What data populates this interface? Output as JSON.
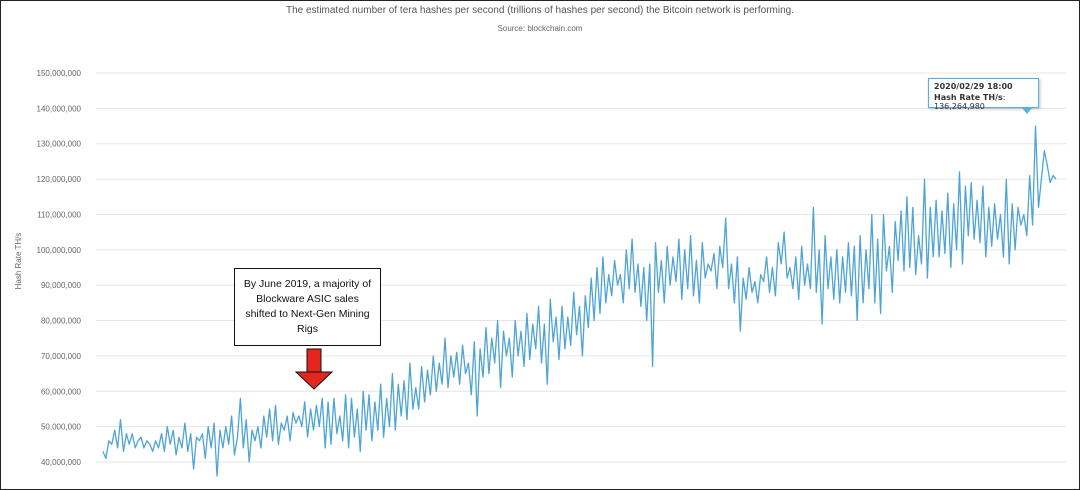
{
  "header": {
    "subtitle": "The estimated number of tera hashes per second (trillions of hashes per second) the Bitcoin network is performing.",
    "source": "Source: blockchain.com"
  },
  "tooltip": {
    "date": "2020/02/29 18:00",
    "label": "Hash Rate TH/s",
    "value": "136,264,980"
  },
  "annotation": {
    "text": "By June 2019, a majority of Blockware ASIC sales shifted to Next-Gen Mining Rigs"
  },
  "colors": {
    "line": "#4ea4d4",
    "arrow": "#e5261f",
    "grid": "#e6e6e6"
  },
  "chart_data": {
    "type": "line",
    "title": "",
    "ylabel": "Hash Rate TH/s",
    "xlabel": "",
    "ylim": [
      35000000,
      150000000
    ],
    "yticks": [
      40000000,
      50000000,
      60000000,
      70000000,
      80000000,
      90000000,
      100000000,
      110000000,
      120000000,
      130000000,
      140000000,
      150000000
    ],
    "ytick_labels": [
      "40,000,000",
      "50,000,000",
      "60,000,000",
      "70,000,000",
      "80,000,000",
      "90,000,000",
      "100,000,000",
      "110,000,000",
      "120,000,000",
      "130,000,000",
      "140,000,000",
      "150,000,000"
    ],
    "grid": true,
    "legend": "none",
    "series": [
      {
        "values": [
          43000000,
          41000000,
          46000000,
          45000000,
          49000000,
          44000000,
          52000000,
          43000000,
          48000000,
          45000000,
          48000000,
          44000000,
          46000000,
          47000000,
          44000000,
          46000000,
          45000000,
          43000000,
          46000000,
          44000000,
          48000000,
          43000000,
          50000000,
          45000000,
          49000000,
          42000000,
          47000000,
          44000000,
          51000000,
          43000000,
          48000000,
          38000000,
          47000000,
          46000000,
          48000000,
          41000000,
          50000000,
          44000000,
          51000000,
          36000000,
          49000000,
          44000000,
          50000000,
          45000000,
          53000000,
          42000000,
          47000000,
          58000000,
          44000000,
          52000000,
          40000000,
          49000000,
          46000000,
          50000000,
          44000000,
          53000000,
          47000000,
          55000000,
          46000000,
          56000000,
          45000000,
          51000000,
          49000000,
          53000000,
          46000000,
          54000000,
          51000000,
          53000000,
          50000000,
          57000000,
          47000000,
          55000000,
          49000000,
          56000000,
          50000000,
          58000000,
          44000000,
          57000000,
          45000000,
          58000000,
          48000000,
          53000000,
          46000000,
          59000000,
          44000000,
          58000000,
          47000000,
          55000000,
          43000000,
          60000000,
          49000000,
          59000000,
          46000000,
          57000000,
          49000000,
          62000000,
          47000000,
          58000000,
          50000000,
          65000000,
          49000000,
          62000000,
          53000000,
          63000000,
          52000000,
          68000000,
          55000000,
          61000000,
          55000000,
          67000000,
          57000000,
          66000000,
          59000000,
          70000000,
          60000000,
          68000000,
          62000000,
          75000000,
          61000000,
          70000000,
          64000000,
          71000000,
          62000000,
          73000000,
          65000000,
          68000000,
          59000000,
          74000000,
          53000000,
          72000000,
          64000000,
          78000000,
          65000000,
          75000000,
          68000000,
          80000000,
          61000000,
          77000000,
          70000000,
          75000000,
          64000000,
          80000000,
          70000000,
          77000000,
          67000000,
          82000000,
          69000000,
          79000000,
          72000000,
          84000000,
          68000000,
          79000000,
          62000000,
          86000000,
          74000000,
          81000000,
          69000000,
          84000000,
          72000000,
          81000000,
          73000000,
          88000000,
          76000000,
          84000000,
          70000000,
          87000000,
          78000000,
          92000000,
          80000000,
          95000000,
          82000000,
          98000000,
          85000000,
          93000000,
          87000000,
          97000000,
          90000000,
          93000000,
          85000000,
          100000000,
          89000000,
          103000000,
          88000000,
          96000000,
          84000000,
          95000000,
          80000000,
          96000000,
          67000000,
          102000000,
          88000000,
          97000000,
          85000000,
          101000000,
          90000000,
          98000000,
          91000000,
          103000000,
          86000000,
          100000000,
          89000000,
          104000000,
          87000000,
          97000000,
          85000000,
          102000000,
          92000000,
          96000000,
          94000000,
          99000000,
          89000000,
          101000000,
          95000000,
          109000000,
          89000000,
          96000000,
          85000000,
          98000000,
          77000000,
          92000000,
          86000000,
          95000000,
          88000000,
          91000000,
          85000000,
          93000000,
          91000000,
          98000000,
          88000000,
          95000000,
          87000000,
          102000000,
          96000000,
          105000000,
          92000000,
          95000000,
          89000000,
          98000000,
          86000000,
          101000000,
          90000000,
          96000000,
          89000000,
          112000000,
          88000000,
          100000000,
          79000000,
          104000000,
          89000000,
          98000000,
          86000000,
          100000000,
          85000000,
          98000000,
          88000000,
          102000000,
          87000000,
          101000000,
          80000000,
          104000000,
          85000000,
          100000000,
          89000000,
          110000000,
          85000000,
          103000000,
          82000000,
          110000000,
          94000000,
          101000000,
          88000000,
          108000000,
          97000000,
          111000000,
          94000000,
          115000000,
          95000000,
          112000000,
          93000000,
          104000000,
          96000000,
          120000000,
          92000000,
          112000000,
          98000000,
          114000000,
          98000000,
          111000000,
          99000000,
          116000000,
          95000000,
          113000000,
          100000000,
          122000000,
          96000000,
          118000000,
          104000000,
          119000000,
          103000000,
          114000000,
          102000000,
          118000000,
          98000000,
          112000000,
          101000000,
          113000000,
          103000000,
          110000000,
          98000000,
          120000000,
          96000000,
          113000000,
          100000000,
          112000000,
          107000000,
          110000000,
          104000000,
          121000000,
          107000000,
          135000000,
          112000000,
          120000000,
          128000000,
          124000000,
          119000000,
          121000000,
          120000000
        ]
      }
    ]
  }
}
